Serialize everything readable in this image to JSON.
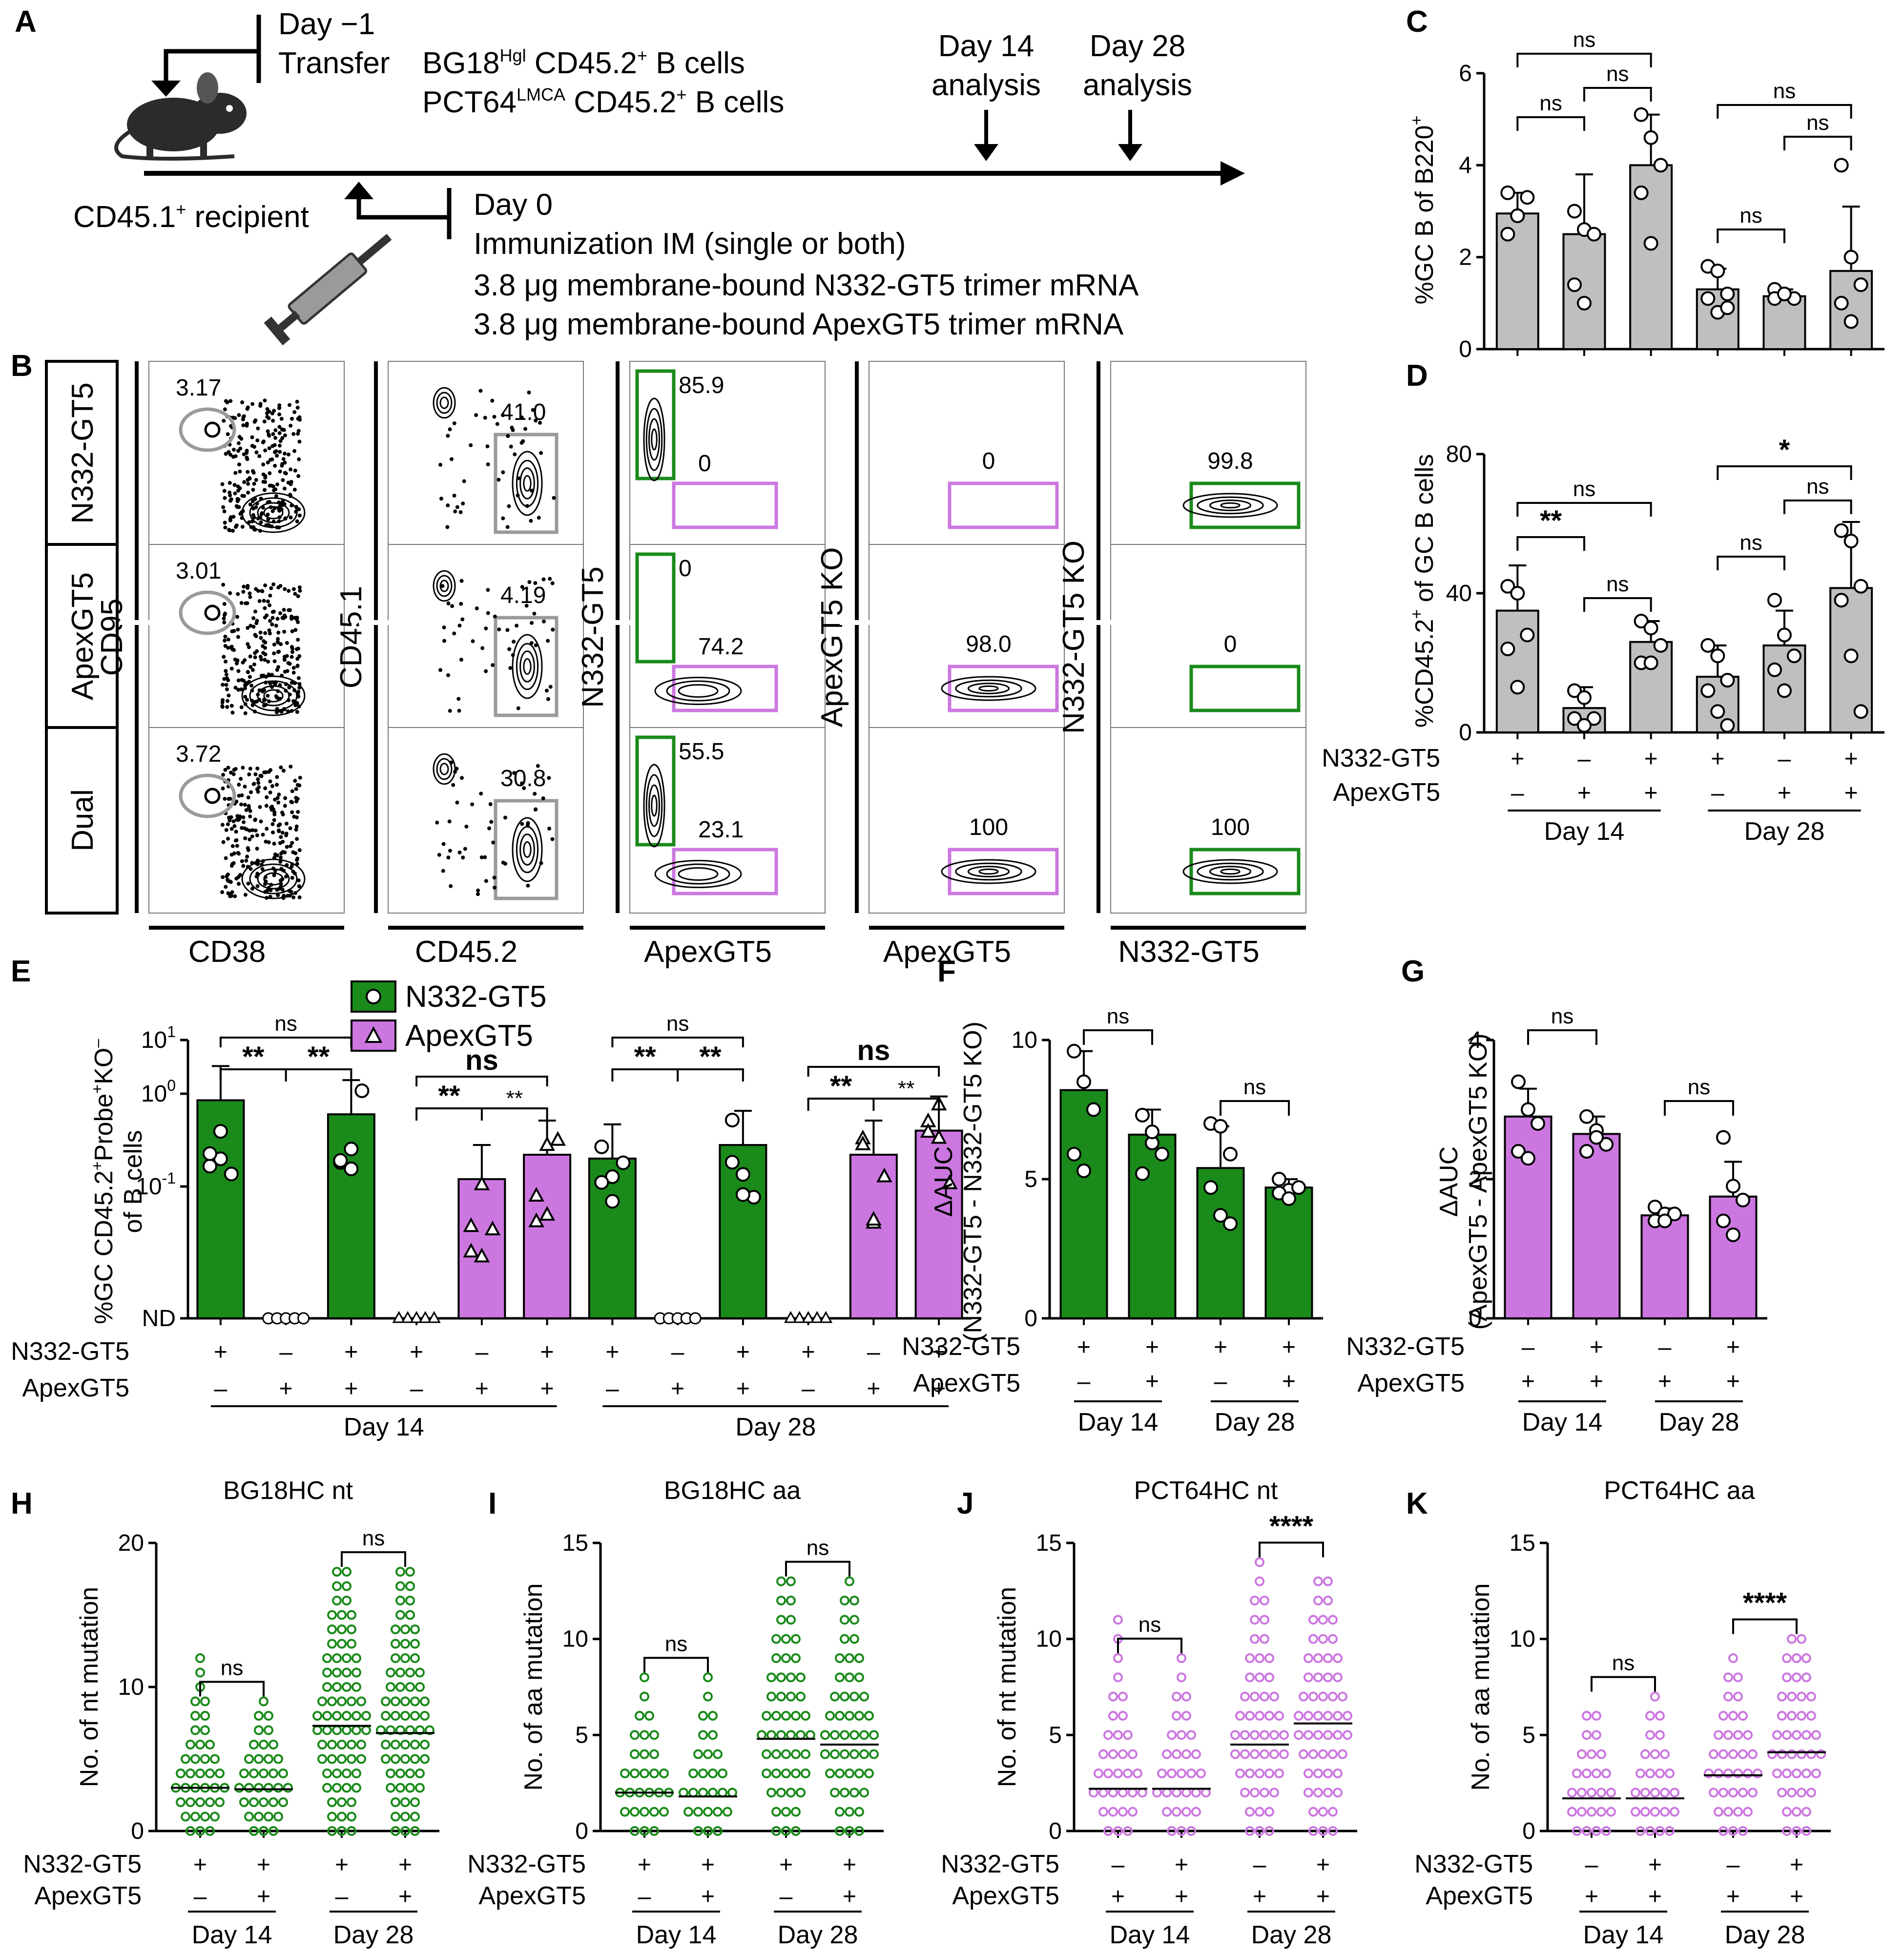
{
  "colors": {
    "green": "#1a8a1a",
    "purple": "#cc77e0",
    "gray": "#bfbfbf",
    "gate_gray": "#9a9a9a",
    "black": "#000000"
  },
  "panel_a": {
    "label": "A",
    "day_minus1": "Day −1",
    "transfer": "Transfer",
    "cells1": "BG18",
    "cells1_sup": "Hgl",
    "cells1_rest": " CD45.2",
    "cells1_tail": " B cells",
    "cells2": "PCT64",
    "cells2_sup": "LMCA",
    "cells2_rest": " CD45.2",
    "cells2_tail": " B cells",
    "plus_sup": "+",
    "recipient": "CD45.1",
    "recipient_tail": " recipient",
    "day0": "Day 0",
    "immunization": "Immunization IM (single or both)",
    "dose1": "3.8 μg membrane-bound N332-GT5  trimer mRNA",
    "dose2": "3.8 μg membrane-bound ApexGT5  trimer mRNA",
    "d14a": "Day 14",
    "d14b": "analysis",
    "d28a": "Day 28",
    "d28b": "analysis"
  },
  "panel_b": {
    "label": "B",
    "rows": [
      "N332-GT5",
      "ApexGT5",
      "Dual"
    ],
    "columns": [
      {
        "xlabel": "CD38",
        "ylabel": "CD95",
        "values": [
          "3.17",
          "3.01",
          "3.72"
        ]
      },
      {
        "xlabel": "CD45.2",
        "ylabel": "CD45.1",
        "values": [
          "41.0",
          "4.19",
          "30.8"
        ]
      },
      {
        "xlabel": "ApexGT5",
        "ylabel": "N332-GT5",
        "upper": [
          "85.9",
          "0",
          "55.5"
        ],
        "lower": [
          "0",
          "74.2",
          "23.1"
        ]
      },
      {
        "xlabel": "ApexGT5",
        "ylabel": "ApexGT5 KO",
        "values": [
          "0",
          "98.0",
          "100"
        ]
      },
      {
        "xlabel": "N332-GT5",
        "ylabel": "N332-GT5 KO",
        "values": [
          "99.8",
          "0",
          "100"
        ]
      }
    ]
  },
  "chart_data": [
    {
      "panel": "C",
      "type": "bar",
      "ylabel": "%GC B of B220",
      "ylabel_sup": "+",
      "ylim": [
        0,
        6
      ],
      "yticks": [
        "0",
        "2",
        "4",
        "6"
      ],
      "categories": [
        "N332-GT5 D14",
        "ApexGT5 D14",
        "Dual D14",
        "N332-GT5 D28",
        "ApexGT5 D28",
        "Dual D28"
      ],
      "values": [
        2.95,
        2.5,
        4.0,
        1.3,
        1.15,
        1.7
      ],
      "errors": [
        0.45,
        1.3,
        1.1,
        0.45,
        0.15,
        1.4
      ],
      "points": [
        [
          2.5,
          2.9,
          3.3,
          3.4,
          2.9
        ],
        [
          3.0,
          2.6,
          2.5,
          1.4,
          1.0
        ],
        [
          5.1,
          4.6,
          4.0,
          3.4,
          2.3
        ],
        [
          1.8,
          1.7,
          1.2,
          1.1,
          0.8,
          0.9
        ],
        [
          1.3,
          1.2,
          1.1,
          1.1,
          1.2
        ],
        [
          4.0,
          2.0,
          1.4,
          1.0,
          0.6
        ]
      ],
      "significance": [
        {
          "text": "ns",
          "from": 0,
          "to": 1
        },
        {
          "text": "ns",
          "from": 1,
          "to": 2
        },
        {
          "text": "ns",
          "from": 0,
          "to": 2
        },
        {
          "text": "ns",
          "from": 3,
          "to": 4
        },
        {
          "text": "ns",
          "from": 4,
          "to": 5
        },
        {
          "text": "ns",
          "from": 3,
          "to": 5
        }
      ]
    },
    {
      "panel": "D",
      "type": "bar",
      "ylabel": "%CD45.2",
      "ylabel_sup": "+",
      "ylabel_tail": " of GC B cells",
      "ylim": [
        0,
        80
      ],
      "yticks": [
        "0",
        "40",
        "80"
      ],
      "categories": [
        "N332-GT5 D14",
        "ApexGT5 D14",
        "Dual D14",
        "N332-GT5 D28",
        "ApexGT5 D28",
        "Dual D28"
      ],
      "values": [
        35,
        7,
        26,
        16,
        25,
        41.5
      ],
      "errors": [
        13,
        6,
        6,
        9,
        10,
        19
      ],
      "points": [
        [
          42,
          40,
          28,
          24,
          13
        ],
        [
          12,
          10,
          4,
          4,
          2
        ],
        [
          32,
          30,
          25,
          20,
          20
        ],
        [
          25,
          22,
          15,
          12,
          6,
          2
        ],
        [
          38,
          28,
          22,
          18,
          12
        ],
        [
          58,
          55,
          42,
          38,
          22,
          6
        ]
      ],
      "significance": [
        {
          "text": "**",
          "from": 0,
          "to": 1
        },
        {
          "text": "ns",
          "from": 1,
          "to": 2
        },
        {
          "text": "ns",
          "from": 0,
          "to": 2
        },
        {
          "text": "ns",
          "from": 3,
          "to": 4
        },
        {
          "text": "ns",
          "from": 4,
          "to": 5
        },
        {
          "text": "*",
          "from": 3,
          "to": 5
        }
      ],
      "n332_signs": [
        "+",
        "–",
        "+",
        "+",
        "–",
        "+"
      ],
      "apex_signs": [
        "–",
        "+",
        "+",
        "–",
        "+",
        "+"
      ],
      "groups": [
        "Day 14",
        "Day 28"
      ]
    },
    {
      "panel": "E",
      "type": "bar",
      "ylabel": "%GC CD45.2",
      "ylabel_sup": "+",
      "ylabel_mid": "Probe",
      "ylabel_sup2": "+",
      "ylabel_kot": "KO",
      "ylabel_sup3": "–",
      "ylabel2": "of B cells",
      "yscale": "log",
      "yticks": [
        "ND",
        "10",
        "10",
        "10"
      ],
      "ytick_sup": [
        "",
        "-1",
        "0",
        "1"
      ],
      "series": [
        {
          "name": "N332-GT5"
        },
        {
          "name": "ApexGT5"
        }
      ],
      "values": [
        0.85,
        null,
        0.6,
        null,
        0.12,
        0.22,
        0.2,
        null,
        0.28,
        null,
        0.22,
        0.4
      ],
      "bar_series": [
        0,
        0,
        0,
        1,
        1,
        1,
        0,
        0,
        0,
        1,
        1,
        1
      ],
      "n332_signs": [
        "+",
        "–",
        "+",
        "+",
        "–",
        "+",
        "+",
        "–",
        "+",
        "+",
        "–",
        "+"
      ],
      "apex_signs": [
        "–",
        "+",
        "+",
        "–",
        "+",
        "+",
        "–",
        "+",
        "+",
        "–",
        "+",
        "+"
      ],
      "groups": [
        "Day 14",
        "Day 28"
      ],
      "significance": [
        "**",
        "**",
        "ns",
        "**",
        "**",
        "ns",
        "**",
        "**",
        "ns",
        "**",
        "**",
        "ns"
      ]
    },
    {
      "panel": "F",
      "type": "bar",
      "ylabel": "ΔAUC",
      "ylabel2": "(N332-GT5 - N332-GT5 KO)",
      "ylim": [
        0,
        10
      ],
      "yticks": [
        "0",
        "5",
        "10"
      ],
      "values": [
        8.2,
        6.6,
        5.4,
        4.7
      ],
      "errors": [
        1.4,
        0.9,
        1.5,
        0.3
      ],
      "points": [
        [
          9.6,
          8.5,
          7.5,
          5.9,
          5.3
        ],
        [
          7.3,
          6.3,
          5.9,
          5.2,
          6.7
        ],
        [
          7.0,
          6.9,
          5.9,
          4.7,
          3.7,
          3.4
        ],
        [
          5.0,
          4.6,
          4.7,
          4.5,
          4.3
        ]
      ],
      "n332_signs": [
        "+",
        "+",
        "+",
        "+"
      ],
      "apex_signs": [
        "–",
        "+",
        "–",
        "+"
      ],
      "groups": [
        "Day 14",
        "Day 28"
      ],
      "significance": [
        "ns",
        "ns"
      ]
    },
    {
      "panel": "G",
      "type": "bar",
      "ylabel": "ΔAUC",
      "ylabel2": "(ApexGT5 - ApexGT5 KO)",
      "ylim": [
        0,
        4
      ],
      "yticks": [
        "0",
        "2",
        "4"
      ],
      "values": [
        2.9,
        2.65,
        1.48,
        1.75
      ],
      "errors": [
        0.4,
        0.25,
        0.1,
        0.5
      ],
      "points": [
        [
          3.4,
          3.0,
          2.8,
          2.4,
          2.3
        ],
        [
          2.9,
          2.7,
          2.5,
          2.4,
          2.6
        ],
        [
          1.6,
          1.5,
          1.5,
          1.4,
          1.4
        ],
        [
          2.6,
          1.9,
          1.7,
          1.4,
          1.2
        ]
      ],
      "n332_signs": [
        "–",
        "+",
        "–",
        "+"
      ],
      "apex_signs": [
        "+",
        "+",
        "+",
        "+"
      ],
      "groups": [
        "Day 14",
        "Day 28"
      ],
      "significance": [
        "ns",
        "ns"
      ]
    },
    {
      "panel": "H",
      "type": "scatter",
      "title": "BG18HC nt",
      "ylabel": "No. of nt mutation",
      "ylim": [
        0,
        20
      ],
      "yticks": [
        "0",
        "10",
        "20"
      ],
      "max": [
        12,
        9,
        18,
        18
      ],
      "mean": [
        3.0,
        2.9,
        7.3,
        6.8
      ],
      "significance": [
        "ns",
        "ns"
      ],
      "n332_signs": [
        "+",
        "+",
        "+",
        "+"
      ],
      "apex_signs": [
        "–",
        "+",
        "–",
        "+"
      ],
      "groups": [
        "Day 14",
        "Day 28"
      ]
    },
    {
      "panel": "I",
      "type": "scatter",
      "title": "BG18HC aa",
      "ylabel": "No. of aa mutation",
      "ylim": [
        0,
        15
      ],
      "yticks": [
        "0",
        "5",
        "10",
        "15"
      ],
      "max": [
        8,
        8,
        13,
        13
      ],
      "mean": [
        2.0,
        1.8,
        4.8,
        4.5
      ],
      "significance": [
        "ns",
        "ns"
      ],
      "n332_signs": [
        "+",
        "+",
        "+",
        "+"
      ],
      "apex_signs": [
        "–",
        "+",
        "–",
        "+"
      ],
      "groups": [
        "Day 14",
        "Day 28"
      ]
    },
    {
      "panel": "J",
      "type": "scatter",
      "title": "PCT64HC nt",
      "ylabel": "No. of nt mutation",
      "ylim": [
        0,
        15
      ],
      "yticks": [
        "0",
        "5",
        "10",
        "15"
      ],
      "max": [
        11,
        9,
        14,
        13
      ],
      "mean": [
        2.2,
        2.2,
        4.5,
        5.6
      ],
      "significance": [
        "ns",
        "****"
      ],
      "n332_signs": [
        "–",
        "+",
        "–",
        "+"
      ],
      "apex_signs": [
        "+",
        "+",
        "+",
        "+"
      ],
      "groups": [
        "Day 14",
        "Day 28"
      ]
    },
    {
      "panel": "K",
      "type": "scatter",
      "title": "PCT64HC aa",
      "ylabel": "No. of aa mutation",
      "ylim": [
        0,
        15
      ],
      "yticks": [
        "0",
        "5",
        "10",
        "15"
      ],
      "max": [
        6,
        7,
        9,
        10
      ],
      "mean": [
        1.7,
        1.7,
        2.9,
        4.1
      ],
      "significance": [
        "ns",
        "****"
      ],
      "n332_signs": [
        "–",
        "+",
        "–",
        "+"
      ],
      "apex_signs": [
        "+",
        "+",
        "+",
        "+"
      ],
      "groups": [
        "Day 14",
        "Day 28"
      ]
    }
  ],
  "row_labels": {
    "n332": "N332-GT5",
    "apex": "ApexGT5"
  }
}
